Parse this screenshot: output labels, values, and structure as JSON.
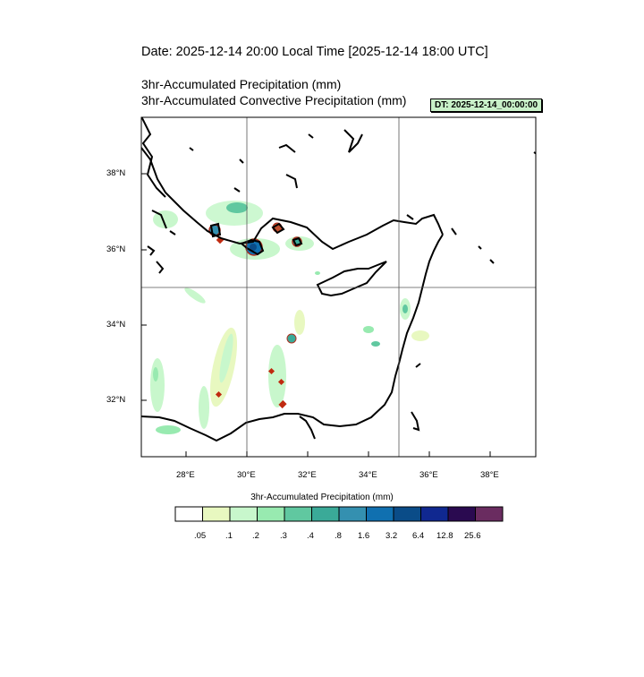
{
  "header": {
    "date_line": "Date: 2025-12-14  20:00 Local Time [2025-12-14  18:00 UTC]",
    "field_1": "3hr-Accumulated Precipitation   (mm)",
    "field_2": "3hr-Accumulated Convective Precipitation   (mm)",
    "dt_badge": "DT: 2025-12-14_00:00:00"
  },
  "map": {
    "lat_labels": [
      "38°N",
      "36°N",
      "34°N",
      "32°N"
    ],
    "lon_labels": [
      "28°E",
      "30°E",
      "32°E",
      "34°E",
      "36°E",
      "38°E"
    ]
  },
  "colorbar": {
    "title": "3hr-Accumulated Precipitation  (mm)",
    "levels": [
      ".05",
      ".1",
      ".2",
      ".3",
      ".4",
      ".8",
      "1.6",
      "3.2",
      "6.4",
      "12.8",
      "25.6"
    ],
    "colors": [
      "#ffffff",
      "#e8f8c0",
      "#c8f7cc",
      "#98eab0",
      "#60c8a0",
      "#3aaa98",
      "#3490b0",
      "#1070b0",
      "#0a4c88",
      "#102890",
      "#2a0a50",
      "#6a2c60"
    ]
  }
}
